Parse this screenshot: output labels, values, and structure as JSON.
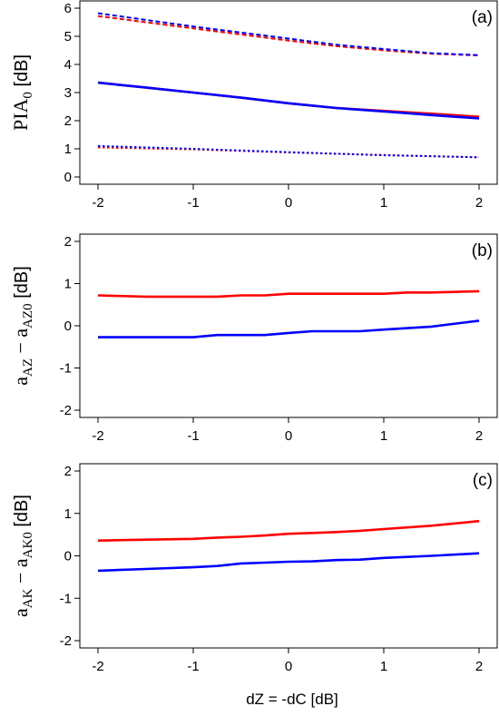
{
  "chart_data": [
    {
      "type": "line",
      "panel_label": "(a)",
      "ylabel": {
        "main": "PIA",
        "sub": "0",
        "unit": " [dB]"
      },
      "xlim": [
        -2,
        2
      ],
      "ylim": [
        0,
        6
      ],
      "xticks": [
        -2,
        -1,
        0,
        1,
        2
      ],
      "yticks": [
        0,
        1,
        2,
        3,
        4,
        5,
        6
      ],
      "xtick_labels": [
        "-2",
        "-1",
        "0",
        "1",
        "2"
      ],
      "ytick_labels": [
        "0",
        "1",
        "2",
        "3",
        "4",
        "5",
        "6"
      ],
      "series": [
        {
          "color": "#ff0000",
          "style": "dashed",
          "x": [
            -2,
            -1,
            0,
            0.5,
            1,
            1.5,
            2
          ],
          "y": [
            5.72,
            5.28,
            4.85,
            4.65,
            4.5,
            4.38,
            4.32
          ]
        },
        {
          "color": "#0000ff",
          "style": "dashed",
          "x": [
            -2,
            -1,
            0,
            0.5,
            1,
            1.5,
            2
          ],
          "y": [
            5.82,
            5.35,
            4.92,
            4.7,
            4.55,
            4.4,
            4.33
          ]
        },
        {
          "color": "#ff0000",
          "style": "solid",
          "x": [
            -2,
            -1.5,
            -1,
            -0.5,
            0,
            0.5,
            1,
            1.5,
            2
          ],
          "y": [
            3.35,
            3.18,
            3.0,
            2.82,
            2.62,
            2.45,
            2.35,
            2.25,
            2.14
          ]
        },
        {
          "color": "#0000ff",
          "style": "solid",
          "x": [
            -2,
            -1.5,
            -1,
            -0.5,
            0,
            0.5,
            1,
            1.5,
            2
          ],
          "y": [
            3.35,
            3.18,
            3.0,
            2.82,
            2.62,
            2.45,
            2.33,
            2.2,
            2.08
          ]
        },
        {
          "color": "#ff0000",
          "style": "dotted",
          "x": [
            -2,
            -1,
            0,
            1,
            2
          ],
          "y": [
            1.05,
            0.98,
            0.87,
            0.78,
            0.7
          ]
        },
        {
          "color": "#0000ff",
          "style": "dotted",
          "x": [
            -2,
            -1,
            0,
            1,
            2
          ],
          "y": [
            1.1,
            1.0,
            0.88,
            0.77,
            0.7
          ]
        }
      ]
    },
    {
      "type": "line",
      "panel_label": "(b)",
      "ylabel": {
        "main": "a",
        "sub": "AZ",
        "main2": " − a",
        "sub2": "AZ0",
        "unit": " [dB]"
      },
      "xlim": [
        -2,
        2
      ],
      "ylim": [
        -2,
        2
      ],
      "xticks": [
        -2,
        -1,
        0,
        1,
        2
      ],
      "yticks": [
        -2,
        -1,
        0,
        1,
        2
      ],
      "xtick_labels": [
        "-2",
        "-1",
        "0",
        "1",
        "2"
      ],
      "ytick_labels": [
        "-2",
        "-1",
        "0",
        "1",
        "2"
      ],
      "series": [
        {
          "color": "#ff0000",
          "style": "solid",
          "x": [
            -2,
            -1.5,
            -1,
            -0.75,
            -0.5,
            -0.25,
            0,
            0.5,
            1,
            1.25,
            1.5,
            2
          ],
          "y": [
            0.72,
            0.69,
            0.69,
            0.69,
            0.72,
            0.72,
            0.76,
            0.76,
            0.76,
            0.79,
            0.79,
            0.82
          ]
        },
        {
          "color": "#0000ff",
          "style": "solid",
          "x": [
            -2,
            -1.5,
            -1,
            -0.75,
            -0.5,
            -0.25,
            0,
            0.25,
            0.5,
            0.75,
            1,
            1.5,
            2
          ],
          "y": [
            -0.27,
            -0.27,
            -0.27,
            -0.22,
            -0.22,
            -0.22,
            -0.17,
            -0.13,
            -0.13,
            -0.13,
            -0.09,
            -0.02,
            0.12
          ]
        }
      ]
    },
    {
      "type": "line",
      "panel_label": "(c)",
      "ylabel": {
        "main": "a",
        "sub": "AK",
        "main2": " − a",
        "sub2": "AK0",
        "unit": " [dB]"
      },
      "xlim": [
        -2,
        2
      ],
      "ylim": [
        -2,
        2
      ],
      "xticks": [
        -2,
        -1,
        0,
        1,
        2
      ],
      "yticks": [
        -2,
        -1,
        0,
        1,
        2
      ],
      "xtick_labels": [
        "-2",
        "-1",
        "0",
        "1",
        "2"
      ],
      "ytick_labels": [
        "-2",
        "-1",
        "0",
        "1",
        "2"
      ],
      "series": [
        {
          "color": "#ff0000",
          "style": "solid",
          "x": [
            -2,
            -1.5,
            -1,
            -0.75,
            -0.5,
            -0.25,
            0,
            0.25,
            0.5,
            0.75,
            1,
            1.5,
            2
          ],
          "y": [
            0.36,
            0.38,
            0.4,
            0.43,
            0.45,
            0.48,
            0.52,
            0.54,
            0.56,
            0.59,
            0.63,
            0.71,
            0.82
          ]
        },
        {
          "color": "#0000ff",
          "style": "solid",
          "x": [
            -2,
            -1.5,
            -1,
            -0.75,
            -0.5,
            -0.25,
            0,
            0.25,
            0.5,
            0.75,
            1,
            1.5,
            2
          ],
          "y": [
            -0.35,
            -0.31,
            -0.27,
            -0.24,
            -0.18,
            -0.16,
            -0.14,
            -0.13,
            -0.1,
            -0.09,
            -0.05,
            0.0,
            0.06
          ]
        }
      ]
    }
  ],
  "xlabel": "dZ = -dC [dB]"
}
